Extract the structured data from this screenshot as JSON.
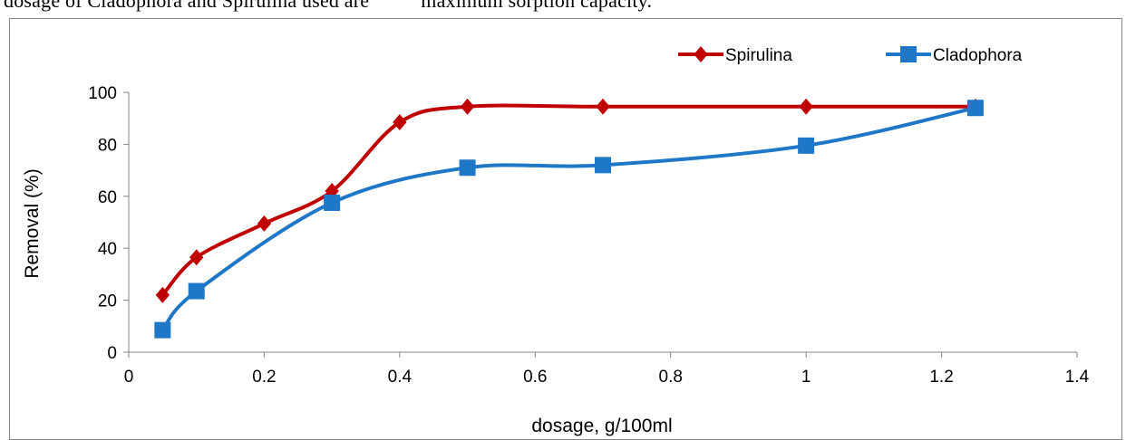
{
  "header_text": "dosage of Cladophora and Spirulina used are          maximum sorption capacity.",
  "chart_data": {
    "type": "line",
    "title": "",
    "xlabel": "dosage, g/100ml",
    "ylabel": "Removal (%)",
    "xlim": [
      0,
      1.4
    ],
    "ylim": [
      0,
      100
    ],
    "x_ticks": [
      "0",
      "0.2",
      "0.4",
      "0.6",
      "0.8",
      "1",
      "1.2",
      "1.4"
    ],
    "y_ticks": [
      "0",
      "20",
      "40",
      "60",
      "80",
      "100"
    ],
    "grid": false,
    "legend_position": "top-right",
    "smooth": true,
    "series": [
      {
        "name": "Spirulina",
        "color": "#c00000",
        "marker": "diamond",
        "x": [
          0.05,
          0.1,
          0.2,
          0.3,
          0.4,
          0.5,
          0.7,
          1.0,
          1.25
        ],
        "y": [
          22,
          36.5,
          49.5,
          62,
          88.5,
          94.5,
          94.5,
          94.5,
          94.5
        ]
      },
      {
        "name": "Cladophora",
        "color": "#1f77c7",
        "marker": "square",
        "x": [
          0.05,
          0.1,
          0.3,
          0.5,
          0.7,
          1.0,
          1.25
        ],
        "y": [
          8.5,
          23.5,
          57.5,
          71,
          72,
          79.5,
          94
        ]
      }
    ]
  }
}
